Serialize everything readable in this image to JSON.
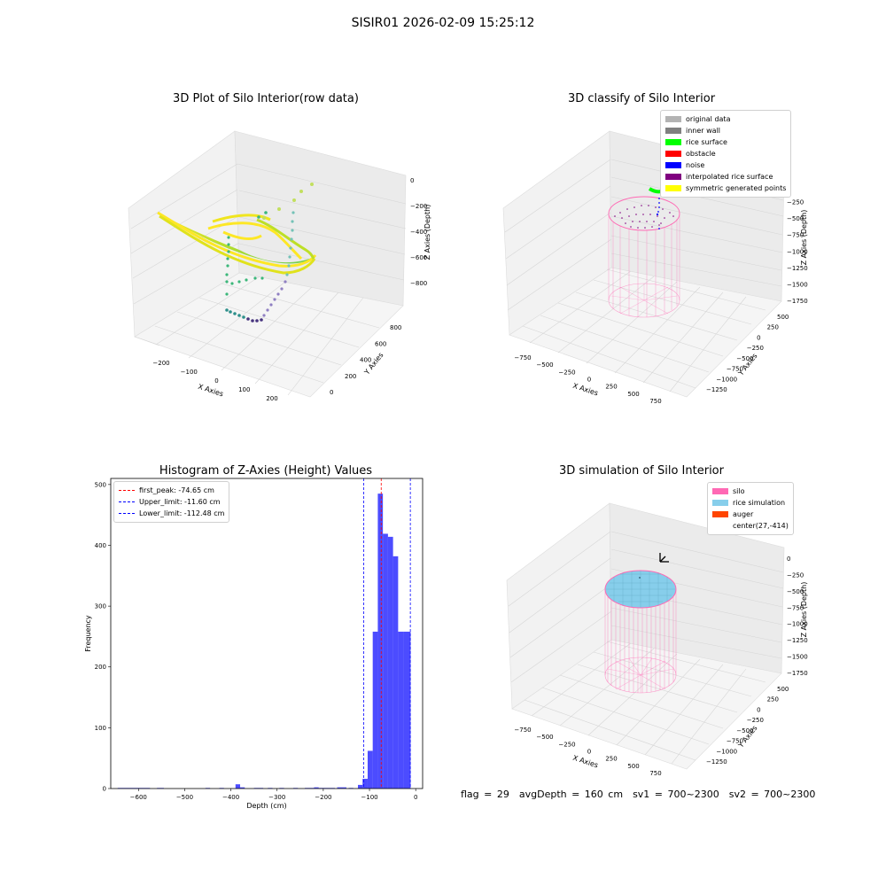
{
  "suptitle": "SISIR01 2026-02-09 15:25:12",
  "panels": {
    "raw": {
      "title": "3D Plot of Silo Interior(row data)",
      "xlabel": "X Axies",
      "ylabel": "Y Axies",
      "zlabel": "Z Axies (Depth)",
      "xticks": [
        "−200",
        "−100",
        "0",
        "100",
        "200"
      ],
      "yticks": [
        "0",
        "200",
        "400",
        "600",
        "800"
      ],
      "zticks": [
        "0",
        "−200",
        "−400",
        "−600",
        "−800"
      ]
    },
    "classify": {
      "title": "3D classify of Silo Interior",
      "xlabel": "X Axies",
      "ylabel": "Y Axies",
      "zlabel": "Z Axies (Depth)",
      "xticks": [
        "−750",
        "−500",
        "−250",
        "0",
        "250",
        "500",
        "750"
      ],
      "yticks": [
        "−1250",
        "−1000",
        "−750",
        "−500",
        "−250",
        "0",
        "250",
        "500"
      ],
      "zticks": [
        "0",
        "−250",
        "−500",
        "−750",
        "−1000",
        "−1250",
        "−1500",
        "−1750"
      ],
      "legend": [
        {
          "label": "original data",
          "color": "#b3b3b3"
        },
        {
          "label": "inner wall",
          "color": "#808080"
        },
        {
          "label": "rice surface",
          "color": "#00ff00"
        },
        {
          "label": "obstacle",
          "color": "#ff0000"
        },
        {
          "label": "noise",
          "color": "#0000ff"
        },
        {
          "label": "interpolated rice surface",
          "color": "#800080"
        },
        {
          "label": "symmetric generated points",
          "color": "#ffff00"
        }
      ]
    },
    "simulation": {
      "title": "3D simulation of Silo Interior",
      "xlabel": "X Axies",
      "ylabel": "Y Axies",
      "zlabel": "Z Axies (Depth)",
      "xticks": [
        "−750",
        "−500",
        "−250",
        "0",
        "250",
        "500",
        "750"
      ],
      "yticks": [
        "−1250",
        "−1000",
        "−750",
        "−500",
        "−250",
        "0",
        "250",
        "500"
      ],
      "zticks": [
        "0",
        "−250",
        "−500",
        "−750",
        "−1000",
        "−1250",
        "−1500",
        "−1750"
      ],
      "legend": [
        {
          "label": "silo",
          "color": "#ff69b4"
        },
        {
          "label": "rice simulation",
          "color": "#87ceeb"
        },
        {
          "label": "auger",
          "color": "#ff4500"
        },
        {
          "label": "center(27,-414)",
          "color": ""
        }
      ]
    }
  },
  "footer": {
    "flag": "flag = 29",
    "avg_depth": "avgDepth = 160 cm",
    "sv1": "sv1 = 700~2300",
    "sv2": "sv2 = 700~2300"
  },
  "chart_data": {
    "type": "bar",
    "title": "Histogram of Z-Axies (Height) Values",
    "xlabel": "Depth (cm)",
    "ylabel": "Frequency",
    "xlim": [
      -660,
      15
    ],
    "ylim": [
      0,
      510
    ],
    "xticks": [
      -600,
      -500,
      -400,
      -300,
      -200,
      -100,
      0
    ],
    "yticks": [
      0,
      100,
      200,
      300,
      400,
      500
    ],
    "bar_color": "#0000ff",
    "bins": [
      {
        "x0": -645,
        "x1": -575,
        "count": 1
      },
      {
        "x0": -560,
        "x1": -545,
        "count": 1
      },
      {
        "x0": -455,
        "x1": -445,
        "count": 1
      },
      {
        "x0": -425,
        "x1": -415,
        "count": 1
      },
      {
        "x0": -390,
        "x1": -380,
        "count": 7
      },
      {
        "x0": -380,
        "x1": -370,
        "count": 2
      },
      {
        "x0": -350,
        "x1": -330,
        "count": 1
      },
      {
        "x0": -320,
        "x1": -310,
        "count": 1
      },
      {
        "x0": -295,
        "x1": -285,
        "count": 1
      },
      {
        "x0": -265,
        "x1": -255,
        "count": 1
      },
      {
        "x0": -240,
        "x1": -220,
        "count": 1
      },
      {
        "x0": -220,
        "x1": -210,
        "count": 2
      },
      {
        "x0": -210,
        "x1": -185,
        "count": 1
      },
      {
        "x0": -185,
        "x1": -175,
        "count": 1
      },
      {
        "x0": -170,
        "x1": -150,
        "count": 2
      },
      {
        "x0": -145,
        "x1": -135,
        "count": 1
      },
      {
        "x0": -125,
        "x1": -115,
        "count": 6
      },
      {
        "x0": -115,
        "x1": -104,
        "count": 16
      },
      {
        "x0": -104,
        "x1": -93,
        "count": 62
      },
      {
        "x0": -93,
        "x1": -82,
        "count": 258
      },
      {
        "x0": -82,
        "x1": -71,
        "count": 485
      },
      {
        "x0": -71,
        "x1": -60,
        "count": 419
      },
      {
        "x0": -60,
        "x1": -49,
        "count": 414
      },
      {
        "x0": -49,
        "x1": -38,
        "count": 382
      },
      {
        "x0": -38,
        "x1": -27,
        "count": 258
      },
      {
        "x0": -27,
        "x1": -11,
        "count": 258
      }
    ],
    "vlines": [
      {
        "name": "first_peak: -74.65 cm",
        "x": -74.65,
        "color": "#ff0000"
      },
      {
        "name": "Upper_limit: -11.60 cm",
        "x": -11.6,
        "color": "#0000ff"
      },
      {
        "name": "Lower_limit: -112.48 cm",
        "x": -112.48,
        "color": "#0000ff"
      }
    ]
  }
}
